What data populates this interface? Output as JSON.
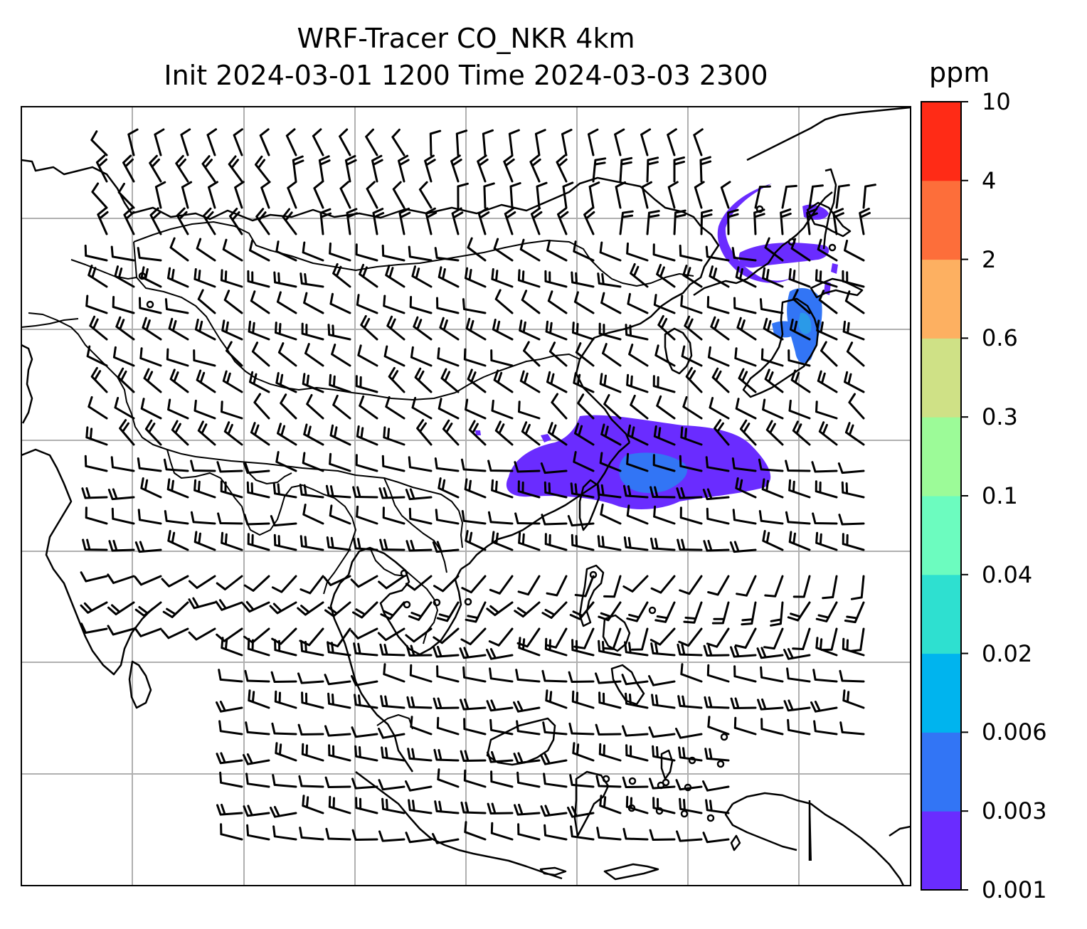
{
  "title": {
    "line1": "WRF-Tracer CO_NKR 4km",
    "line2": "Init 2024-03-01 1200 Time 2024-03-03 2300"
  },
  "colorbar": {
    "unit": "ppm",
    "ticks": [
      "0.001",
      "0.003",
      "0.006",
      "0.02",
      "0.04",
      "0.1",
      "0.3",
      "0.6",
      "2",
      "4",
      "10"
    ],
    "colors": [
      "#6a2cff",
      "#3275f5",
      "#00b4ee",
      "#2ee0d0",
      "#6cfcbf",
      "#9cfb98",
      "#cfe186",
      "#fdb061",
      "#fd6e3a",
      "#ff2b16"
    ]
  },
  "map": {
    "projection": "lat-lon",
    "gridlines": true,
    "features": [
      "coastlines",
      "country-borders",
      "wind-barbs",
      "tracer-concentration"
    ],
    "tracer_colors": {
      "level1": "#6a2cff",
      "level2": "#3275f5",
      "level3": "#2a9ae8"
    }
  }
}
